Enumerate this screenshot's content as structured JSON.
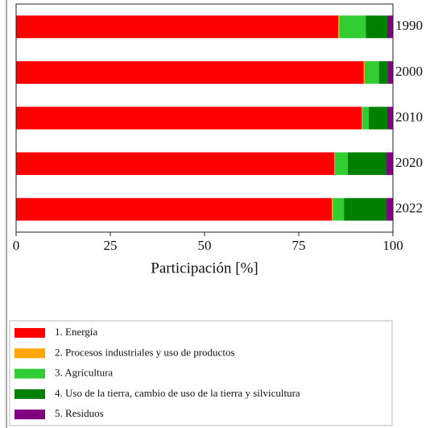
{
  "chart_data": {
    "type": "stacked-barh",
    "categories": [
      "1990",
      "2000",
      "2010",
      "2020",
      "2022"
    ],
    "series": [
      {
        "name": "1. Energía",
        "color": "#ff0000",
        "values": [
          85.5,
          92.2,
          91.7,
          84.4,
          83.8
        ]
      },
      {
        "name": "2. Procesos industriales y uso de productos",
        "color": "#ffa500",
        "values": [
          0.3,
          0.3,
          0.2,
          0.2,
          0.2
        ]
      },
      {
        "name": "3. Agricultura",
        "color": "#32cd32",
        "values": [
          7,
          3.8,
          1.7,
          3.4,
          3
        ]
      },
      {
        "name": "4. Uso de la tierra, cambio de uso de la tierra y silvicultura",
        "color": "#008000",
        "values": [
          5.7,
          2.3,
          4.9,
          10.3,
          11.3
        ]
      },
      {
        "name": "5. Residuos",
        "color": "#800080",
        "values": [
          1.5,
          1.4,
          1.5,
          1.7,
          1.7
        ]
      }
    ],
    "xlabel": "Participación [%]",
    "xlim": [
      0,
      100
    ],
    "xticks": [
      0,
      25,
      50,
      75,
      100
    ]
  }
}
